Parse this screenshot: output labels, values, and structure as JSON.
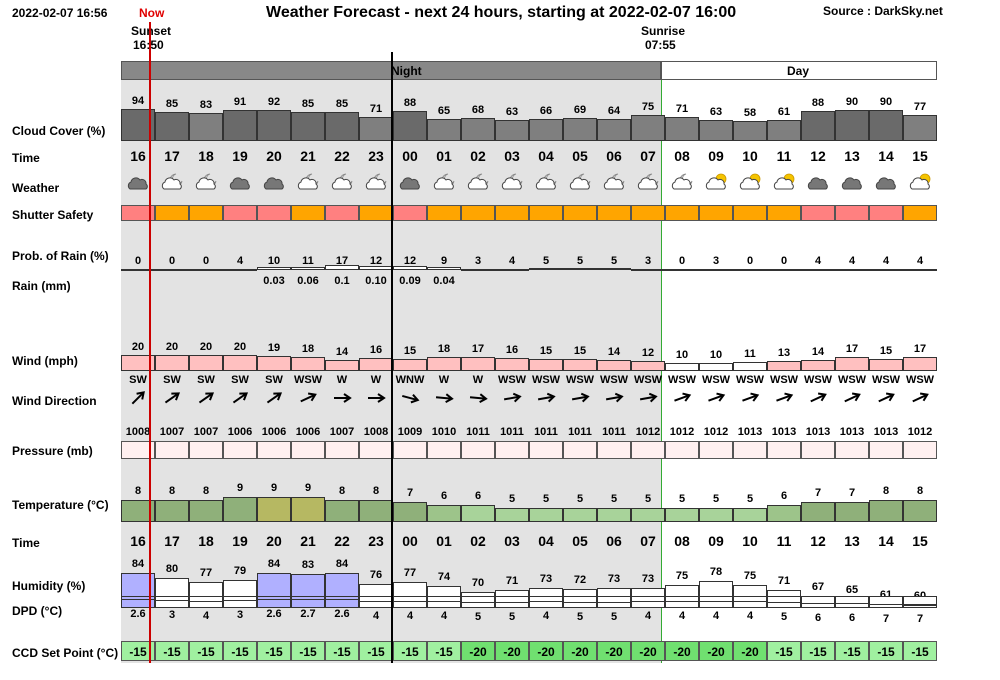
{
  "header": {
    "datetime": "2022-02-07 16:56",
    "now_label": "Now",
    "title": "Weather Forecast - next 24 hours, starting at 2022-02-07 16:00",
    "source": "Source : DarkSky.net",
    "sunset_label": "Sunset",
    "sunset_time": "16:50",
    "sunrise_label": "Sunrise",
    "sunrise_time": "07:55",
    "night_label": "Night",
    "day_label": "Day"
  },
  "labels": {
    "cloud": "Cloud Cover (%)",
    "time": "Time",
    "weather": "Weather",
    "shutter": "Shutter Safety",
    "rain_prob": "Prob. of Rain (%)",
    "rain_mm": "Rain (mm)",
    "wind": "Wind (mph)",
    "wind_dir": "Wind Direction",
    "pressure": "Pressure (mb)",
    "temperature": "Temperature (°C)",
    "time2": "Time",
    "humidity": "Humidity (%)",
    "dpd": "DPD (°C)",
    "ccd": "CCD Set Point (°C)"
  },
  "hours": [
    "16",
    "17",
    "18",
    "19",
    "20",
    "21",
    "22",
    "23",
    "00",
    "01",
    "02",
    "03",
    "04",
    "05",
    "06",
    "07",
    "08",
    "09",
    "10",
    "11",
    "12",
    "13",
    "14",
    "15"
  ],
  "cloud_cover": [
    94,
    85,
    83,
    91,
    92,
    85,
    85,
    71,
    88,
    65,
    68,
    63,
    66,
    69,
    64,
    75,
    71,
    63,
    58,
    61,
    88,
    90,
    90,
    77
  ],
  "weather_icons": [
    "cloud-dark",
    "cloud-night",
    "cloud-night",
    "cloud-dark",
    "cloud-dark",
    "cloud-night",
    "cloud-night",
    "cloud-night",
    "cloud-dark",
    "cloud-night",
    "cloud-night",
    "cloud-night",
    "cloud-night",
    "cloud-night",
    "cloud-night",
    "cloud-night",
    "cloud-night",
    "cloud-sun",
    "cloud-sun",
    "cloud-sun",
    "cloud-dark",
    "cloud-dark",
    "cloud-dark",
    "cloud-sun"
  ],
  "shutter_colors": [
    "#ff8080",
    "#ffa500",
    "#ffa500",
    "#ff8080",
    "#ff8080",
    "#ffa500",
    "#ff8080",
    "#ffa500",
    "#ff8080",
    "#ffa500",
    "#ffa500",
    "#ffa500",
    "#ffa500",
    "#ffa500",
    "#ffa500",
    "#ffa500",
    "#ffa500",
    "#ffa500",
    "#ffa500",
    "#ffa500",
    "#ff8080",
    "#ff8080",
    "#ff8080",
    "#ffa500"
  ],
  "rain_prob": [
    "0",
    "0",
    "0",
    "4",
    "10",
    "11",
    "17",
    "12",
    "12",
    "9",
    "3",
    "4",
    "5",
    "5",
    "5",
    "3",
    "0",
    "3",
    "0",
    "0",
    "4",
    "4",
    "4",
    "4"
  ],
  "rain_mm": [
    "",
    "",
    "",
    "",
    "0.03",
    "0.06",
    "0.1",
    "0.10",
    "0.09",
    "0.04",
    "",
    "",
    "",
    "",
    "",
    "",
    "",
    "",
    "",
    "",
    "",
    "",
    "",
    ""
  ],
  "wind": [
    "20",
    "20",
    "20",
    "20",
    "19",
    "18",
    "14",
    "16",
    "15",
    "18",
    "17",
    "16",
    "15",
    "15",
    "14",
    "12",
    "10",
    "10",
    "11",
    "13",
    "14",
    "17",
    "15",
    "17"
  ],
  "wind_dir": [
    "SW",
    "SW",
    "SW",
    "SW",
    "SW",
    "WSW",
    "W",
    "W",
    "WNW",
    "W",
    "W",
    "WSW",
    "WSW",
    "WSW",
    "WSW",
    "WSW",
    "WSW",
    "WSW",
    "WSW",
    "WSW",
    "WSW",
    "WSW",
    "WSW",
    "WSW"
  ],
  "wind_arrow_deg": [
    -45,
    -35,
    -35,
    -35,
    -35,
    -25,
    0,
    0,
    15,
    5,
    5,
    -10,
    -10,
    -10,
    -10,
    -10,
    -20,
    -20,
    -20,
    -20,
    -25,
    -25,
    -25,
    -25
  ],
  "pressure": [
    "1008",
    "1007",
    "1007",
    "1006",
    "1006",
    "1006",
    "1007",
    "1008",
    "1009",
    "1010",
    "1011",
    "1011",
    "1011",
    "1011",
    "1011",
    "1012",
    "1012",
    "1012",
    "1013",
    "1013",
    "1013",
    "1013",
    "1013",
    "1012"
  ],
  "temperature": [
    "8",
    "8",
    "8",
    "9",
    "9",
    "9",
    "8",
    "8",
    "7",
    "6",
    "6",
    "5",
    "5",
    "5",
    "5",
    "5",
    "5",
    "5",
    "5",
    "6",
    "7",
    "7",
    "8",
    "8"
  ],
  "temp_colors": [
    "#8fb07a",
    "#8fb07a",
    "#8fb07a",
    "#8fb07a",
    "#b6b862",
    "#b6b862",
    "#8fb07a",
    "#8fb07a",
    "#8fb07a",
    "#9dc48a",
    "#a8d39a",
    "#a8d39a",
    "#a8d39a",
    "#a8d39a",
    "#a8d39a",
    "#a8d39a",
    "#a8d39a",
    "#a8d39a",
    "#a8d39a",
    "#9dc48a",
    "#8fb07a",
    "#8fb07a",
    "#8fb07a",
    "#8fb07a"
  ],
  "humidity": [
    "84",
    "80",
    "77",
    "79",
    "84",
    "83",
    "84",
    "76",
    "77",
    "74",
    "70",
    "71",
    "73",
    "72",
    "73",
    "73",
    "75",
    "78",
    "75",
    "71",
    "67",
    "65",
    "61",
    "60"
  ],
  "dpd": [
    "2.6",
    "3",
    "4",
    "3",
    "2.6",
    "2.7",
    "2.6",
    "4",
    "4",
    "4",
    "5",
    "5",
    "4",
    "5",
    "5",
    "4",
    "4",
    "4",
    "4",
    "5",
    "6",
    "6",
    "7",
    "7"
  ],
  "ccd": [
    "-15",
    "-15",
    "-15",
    "-15",
    "-15",
    "-15",
    "-15",
    "-15",
    "-15",
    "-15",
    "-20",
    "-20",
    "-20",
    "-20",
    "-20",
    "-20",
    "-20",
    "-20",
    "-20",
    "-15",
    "-15",
    "-15",
    "-15",
    "-15"
  ],
  "colors": {
    "night_bg": "#e3e3e3",
    "night_header": "#888888",
    "cloud_bar": "#7f7f7f",
    "cloud_bar_dark": "#6a6a6a",
    "wind_bar": "#ffc0c0",
    "humidity_bar": "#b0b0ff",
    "ccd_light": "#a0f0a0",
    "ccd_dark": "#70e070",
    "now_line": "#cc0000"
  }
}
